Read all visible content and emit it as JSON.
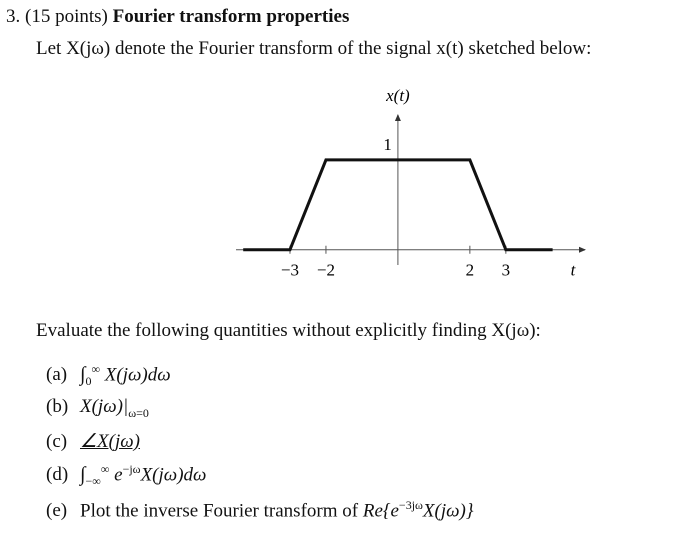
{
  "header": {
    "number": "3.",
    "points": "(15 points)",
    "title": "Fourier transform properties"
  },
  "intro": "Let X(jω) denote the Fourier transform of the signal x(t) sketched below:",
  "chart_data": {
    "type": "line",
    "y_label": "x(t)",
    "x_label": "t",
    "x": [
      -4.3,
      -3,
      -2,
      2,
      3,
      4.3
    ],
    "values": [
      0,
      0,
      1,
      1,
      0,
      0
    ],
    "color": "#111111",
    "xlim": [
      -4.5,
      5.2
    ],
    "ylim": [
      -0.17,
      1.5
    ],
    "xticks": [
      {
        "value": -3,
        "label": "−3"
      },
      {
        "value": -2,
        "label": "−2"
      },
      2,
      3
    ],
    "yticks": [
      1
    ]
  },
  "question": "Evaluate the following quantities without explicitly finding X(jω):",
  "parts": {
    "a": {
      "label": "(a)",
      "integral": "∫",
      "lower": "0",
      "upper": "∞",
      "body": "X(jω)dω"
    },
    "b": {
      "label": "(b)",
      "body": "X(jω)|",
      "sub": "ω=0"
    },
    "c": {
      "label": "(c)",
      "body": "∠X(jω)"
    },
    "d": {
      "label": "(d)",
      "integral": "∫",
      "lower": "−∞",
      "upper": "∞",
      "base": "e",
      "sup": "−jω",
      "body": "X(jω)dω"
    },
    "e": {
      "label": "(e)",
      "text": "Plot the inverse Fourier transform of",
      "pre": "Re{e",
      "sup": "−3jω",
      "body": "X(jω)}"
    }
  }
}
